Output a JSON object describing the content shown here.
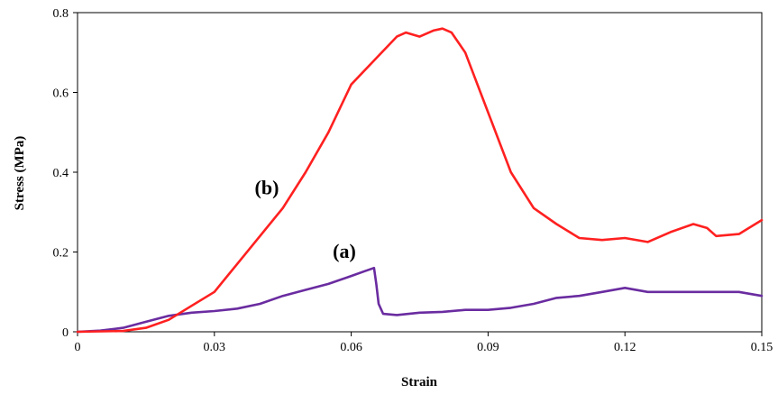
{
  "chart_data": {
    "type": "line",
    "title": "",
    "xlabel": "Strain",
    "ylabel": "Stress  (MPa)",
    "xlim": [
      0,
      0.15
    ],
    "ylim": [
      0,
      0.8
    ],
    "xticks": [
      "0",
      "0.03",
      "0.06",
      "0.09",
      "0.12",
      "0.15"
    ],
    "yticks": [
      "0",
      "0.2",
      "0.4",
      "0.6",
      "0.8"
    ],
    "grid": false,
    "legend": "none",
    "annotations": [
      {
        "text": "(b)",
        "series": "b"
      },
      {
        "text": "(a)",
        "series": "a"
      }
    ],
    "series": [
      {
        "label": "(a)",
        "color": "#6a2ca0",
        "x": [
          0,
          0.005,
          0.01,
          0.015,
          0.02,
          0.025,
          0.03,
          0.035,
          0.04,
          0.045,
          0.05,
          0.055,
          0.06,
          0.063,
          0.065,
          0.0655,
          0.066,
          0.067,
          0.07,
          0.075,
          0.08,
          0.085,
          0.09,
          0.095,
          0.1,
          0.105,
          0.11,
          0.115,
          0.12,
          0.125,
          0.13,
          0.135,
          0.14,
          0.145,
          0.15
        ],
        "y": [
          0,
          0.003,
          0.01,
          0.025,
          0.04,
          0.048,
          0.052,
          0.058,
          0.07,
          0.09,
          0.105,
          0.12,
          0.14,
          0.152,
          0.16,
          0.12,
          0.07,
          0.045,
          0.042,
          0.048,
          0.05,
          0.055,
          0.055,
          0.06,
          0.07,
          0.085,
          0.09,
          0.1,
          0.11,
          0.1,
          0.1,
          0.1,
          0.1,
          0.1,
          0.09
        ]
      },
      {
        "label": "(b)",
        "color": "#ff2020",
        "x": [
          0,
          0.01,
          0.015,
          0.02,
          0.025,
          0.03,
          0.035,
          0.04,
          0.045,
          0.05,
          0.055,
          0.06,
          0.065,
          0.07,
          0.072,
          0.075,
          0.078,
          0.08,
          0.082,
          0.085,
          0.09,
          0.095,
          0.1,
          0.105,
          0.11,
          0.115,
          0.12,
          0.125,
          0.13,
          0.135,
          0.138,
          0.14,
          0.145,
          0.15
        ],
        "y": [
          0,
          0.002,
          0.01,
          0.03,
          0.065,
          0.1,
          0.17,
          0.24,
          0.31,
          0.4,
          0.5,
          0.62,
          0.68,
          0.74,
          0.75,
          0.74,
          0.755,
          0.76,
          0.75,
          0.7,
          0.55,
          0.4,
          0.31,
          0.27,
          0.235,
          0.23,
          0.235,
          0.225,
          0.25,
          0.27,
          0.26,
          0.24,
          0.245,
          0.28
        ]
      }
    ]
  }
}
